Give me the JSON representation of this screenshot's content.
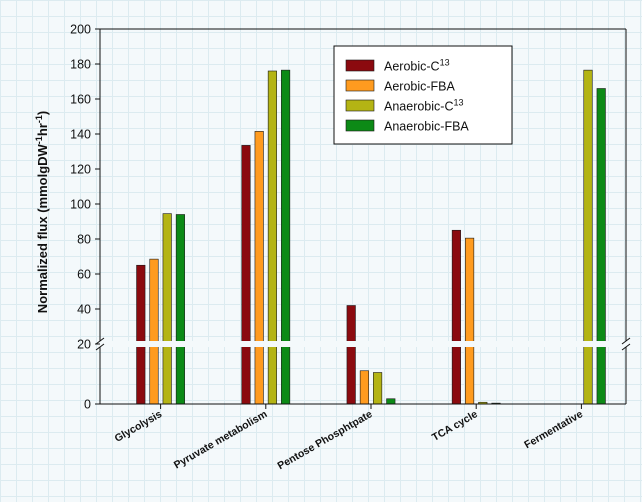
{
  "chart_data": {
    "type": "bar",
    "title": "",
    "xlabel": "",
    "ylabel": "Normalized flux (mmolgDW⁻¹hr⁻¹)",
    "ylabel_parts": {
      "main": "Normalized flux (mmolgDW",
      "sup1": "-1",
      "mid": "hr",
      "sup2": "-1",
      "end": ")"
    },
    "y_axis_break": {
      "lower_segment": [
        0,
        20
      ],
      "upper_segment": [
        20,
        200
      ]
    },
    "ylim": [
      0,
      200
    ],
    "yticks": [
      "0",
      "20",
      "40",
      "60",
      "80",
      "100",
      "120",
      "140",
      "160",
      "180",
      "200"
    ],
    "grid": false,
    "legend_position": "top-center",
    "categories": [
      "Glycolysis",
      "Pyruvate metabolism",
      "Pentose Phosphtpate",
      "TCA cycle",
      "Fermentative"
    ],
    "series": [
      {
        "name": "Aerobic-C13",
        "label_main": "Aerobic-C",
        "label_sup": "13",
        "color": "#8b0a0f",
        "values": [
          65,
          133.5,
          42,
          85,
          0
        ]
      },
      {
        "name": "Aerobic-FBA",
        "label_main": "Aerobic-FBA",
        "label_sup": "",
        "color": "#ff9b1f",
        "values": [
          68.5,
          141.5,
          19,
          80.5,
          0
        ]
      },
      {
        "name": "Anaerobic-C13",
        "label_main": "Anaerobic-C",
        "label_sup": "13",
        "color": "#b4b414",
        "values": [
          94.5,
          176,
          18,
          1,
          176.5
        ]
      },
      {
        "name": "Anaerobic-FBA",
        "label_main": "Anaerobic-FBA",
        "label_sup": "",
        "color": "#0c8a16",
        "values": [
          94,
          176.5,
          3,
          0.5,
          166
        ]
      }
    ]
  }
}
